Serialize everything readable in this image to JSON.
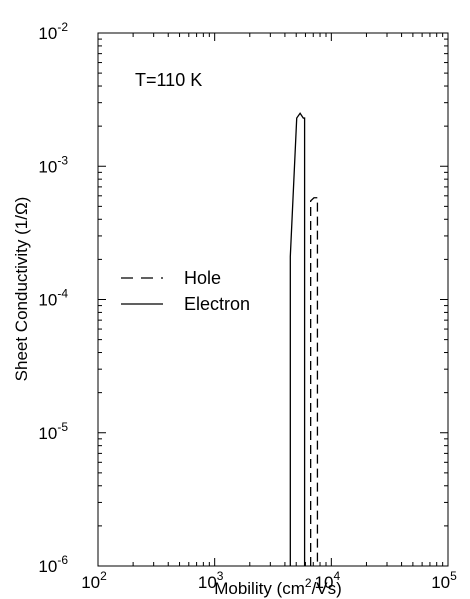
{
  "chart_data": {
    "type": "line",
    "title": "",
    "annotation": "T=110 K",
    "xlabel": "Mobility (cm",
    "xlabel_sup": "2",
    "xlabel_tail": "/Vs)",
    "ylabel": "Sheet Conductivity (1/Ω)",
    "x_scale": "log",
    "y_scale": "log",
    "xlim": [
      100,
      100000
    ],
    "ylim": [
      1e-06,
      0.01
    ],
    "grid": false,
    "legend_position": "center-left",
    "x_ticks": [
      {
        "base": "10",
        "exp": "2",
        "value": 100
      },
      {
        "base": "10",
        "exp": "3",
        "value": 1000
      },
      {
        "base": "10",
        "exp": "4",
        "value": 10000
      },
      {
        "base": "10",
        "exp": "5",
        "value": 100000
      }
    ],
    "y_ticks": [
      {
        "base": "10",
        "exp": "-6",
        "value": 1e-06
      },
      {
        "base": "10",
        "exp": "-5",
        "value": 1e-05
      },
      {
        "base": "10",
        "exp": "-4",
        "value": 0.0001
      },
      {
        "base": "10",
        "exp": "-3",
        "value": 0.001
      },
      {
        "base": "10",
        "exp": "-2",
        "value": 0.01
      }
    ],
    "series": [
      {
        "name": "Hole",
        "style": "dashed",
        "color": "#000000",
        "points": [
          [
            6650,
            1e-06
          ],
          [
            6650,
            0.00055
          ],
          [
            7100,
            0.00058
          ],
          [
            7600,
            0.00058
          ],
          [
            7600,
            1e-06
          ]
        ]
      },
      {
        "name": "Electron",
        "style": "solid",
        "color": "#000000",
        "points": [
          [
            4450,
            1e-06
          ],
          [
            4450,
            0.00021
          ],
          [
            5050,
            0.0023
          ],
          [
            5400,
            0.0025
          ],
          [
            5750,
            0.0023
          ],
          [
            5900,
            0.0023
          ],
          [
            5900,
            1e-06
          ]
        ]
      }
    ]
  }
}
